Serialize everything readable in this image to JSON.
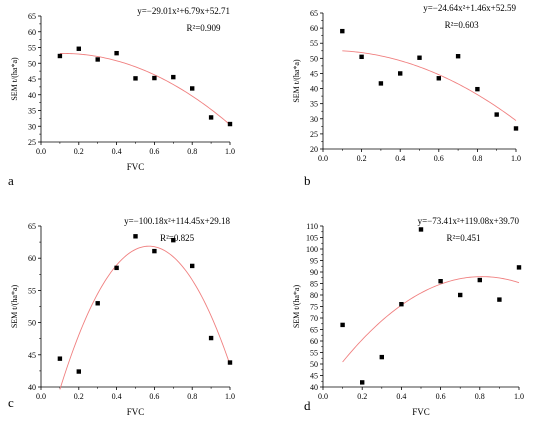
{
  "chart_data": [
    {
      "panel": "a",
      "type": "scatter",
      "xlabel": "FVC",
      "ylabel": "SEM t/(ha*a)",
      "equation": "y=−29.01x²+6.79x+52.71",
      "r2": "R²=0.909",
      "xlim": [
        0.0,
        1.0
      ],
      "ylim": [
        25,
        65
      ],
      "x_ticks": [
        "0.0",
        "0.2",
        "0.4",
        "0.6",
        "0.8",
        "1.0"
      ],
      "y_ticks": [
        "25",
        "30",
        "35",
        "40",
        "45",
        "50",
        "55",
        "60",
        "65"
      ],
      "x": [
        0.1,
        0.2,
        0.3,
        0.4,
        0.5,
        0.6,
        0.7,
        0.8,
        0.9,
        1.0
      ],
      "y": [
        52.3,
        54.6,
        51.2,
        53.2,
        45.2,
        45.3,
        45.6,
        42.0,
        32.8,
        30.7
      ],
      "fit": {
        "a": -29.01,
        "b": 6.79,
        "c": 52.71
      },
      "fit_color": "#f08080",
      "marker_color": "#000000",
      "grid": false
    },
    {
      "panel": "b",
      "type": "scatter",
      "xlabel": "",
      "ylabel": "SEM t/(ha*a)",
      "equation": "y=−24.64x²+1.46x+52.59",
      "r2": "R²=0.603",
      "xlim": [
        0.0,
        1.0
      ],
      "ylim": [
        20,
        65
      ],
      "x_ticks": [
        "0.0",
        "0.2",
        "0.4",
        "0.6",
        "0.8",
        "1.0"
      ],
      "y_ticks": [
        "20",
        "25",
        "30",
        "35",
        "40",
        "45",
        "50",
        "55",
        "60",
        "65"
      ],
      "x": [
        0.1,
        0.2,
        0.3,
        0.4,
        0.5,
        0.6,
        0.7,
        0.8,
        0.9,
        1.0
      ],
      "y": [
        59.0,
        50.5,
        41.7,
        45.0,
        50.2,
        43.4,
        50.7,
        39.8,
        31.4,
        26.8
      ],
      "fit": {
        "a": -24.64,
        "b": 1.46,
        "c": 52.59
      },
      "fit_color": "#f08080",
      "marker_color": "#000000",
      "grid": false
    },
    {
      "panel": "c",
      "type": "scatter",
      "xlabel": "FVC",
      "ylabel": "SEM t/(ha*a)",
      "equation": "y=−100.18x²+114.45x+29.18",
      "r2": "R²=0.825",
      "xlim": [
        0.0,
        1.0
      ],
      "ylim": [
        40,
        65
      ],
      "x_ticks": [
        "0.0",
        "0.2",
        "0.4",
        "0.6",
        "0.8",
        "1.0"
      ],
      "y_ticks": [
        "40",
        "45",
        "50",
        "55",
        "60",
        "65"
      ],
      "x": [
        0.1,
        0.2,
        0.3,
        0.4,
        0.5,
        0.6,
        0.7,
        0.8,
        0.9,
        1.0
      ],
      "y": [
        44.4,
        42.4,
        53.0,
        58.5,
        63.4,
        61.1,
        62.8,
        58.8,
        47.6,
        43.8
      ],
      "fit": {
        "a": -100.18,
        "b": 114.45,
        "c": 29.18
      },
      "fit_color": "#f08080",
      "marker_color": "#000000",
      "grid": false
    },
    {
      "panel": "d",
      "type": "scatter",
      "xlabel": "FVC",
      "ylabel": "SEM t/(ha*a)",
      "equation": "y=−73.41x²+119.08x+39.70",
      "r2": "R²=0.451",
      "xlim": [
        0.0,
        1.0
      ],
      "ylim": [
        40,
        110
      ],
      "x_ticks": [
        "0.0",
        "0.2",
        "0.4",
        "0.6",
        "0.8",
        "1.0"
      ],
      "y_ticks": [
        "40",
        "45",
        "50",
        "55",
        "60",
        "65",
        "70",
        "75",
        "80",
        "85",
        "90",
        "95",
        "100",
        "105",
        "110"
      ],
      "x": [
        0.1,
        0.2,
        0.3,
        0.4,
        0.5,
        0.6,
        0.7,
        0.8,
        0.9,
        1.0
      ],
      "y": [
        67.0,
        42.0,
        53.0,
        76.0,
        108.5,
        86.0,
        80.0,
        86.5,
        78.0,
        92.0
      ],
      "fit": {
        "a": -73.41,
        "b": 119.08,
        "c": 39.7
      },
      "fit_color": "#f08080",
      "marker_color": "#000000",
      "grid": false
    }
  ]
}
